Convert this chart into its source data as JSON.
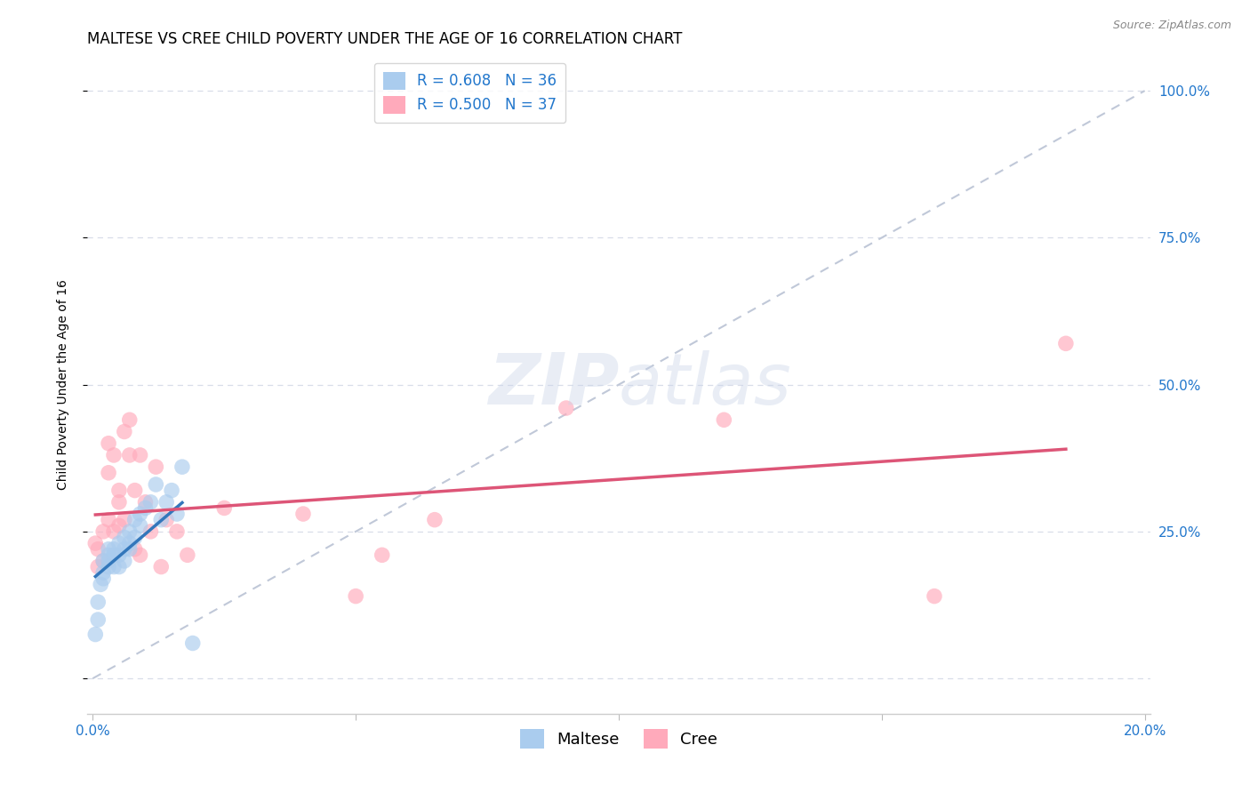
{
  "title": "MALTESE VS CREE CHILD POVERTY UNDER THE AGE OF 16 CORRELATION CHART",
  "source": "Source: ZipAtlas.com",
  "ylabel": "Child Poverty Under the Age of 16",
  "xlim": [
    -0.001,
    0.201
  ],
  "ylim": [
    -0.06,
    1.06
  ],
  "ytick_positions": [
    0.0,
    0.25,
    0.5,
    0.75,
    1.0
  ],
  "right_ytick_positions": [
    1.0,
    0.75,
    0.5,
    0.25
  ],
  "maltese_color": "#aaccee",
  "cree_color": "#ffaabb",
  "maltese_R": 0.608,
  "maltese_N": 36,
  "cree_R": 0.5,
  "cree_N": 37,
  "maltese_line_color": "#3377bb",
  "cree_line_color": "#dd5577",
  "ref_line_color": "#c0c8d8",
  "background_color": "#ffffff",
  "grid_color": "#d8dde8",
  "title_fontsize": 12,
  "axis_label_fontsize": 10,
  "tick_fontsize": 11,
  "legend_fontsize": 12,
  "watermark_color": "#c8d4e8",
  "watermark_alpha": 0.4,
  "maltese_x": [
    0.0005,
    0.001,
    0.001,
    0.0015,
    0.002,
    0.002,
    0.002,
    0.003,
    0.003,
    0.003,
    0.003,
    0.004,
    0.004,
    0.004,
    0.005,
    0.005,
    0.005,
    0.006,
    0.006,
    0.006,
    0.007,
    0.007,
    0.007,
    0.008,
    0.008,
    0.009,
    0.009,
    0.01,
    0.011,
    0.012,
    0.013,
    0.014,
    0.015,
    0.016,
    0.017,
    0.019
  ],
  "maltese_y": [
    0.075,
    0.1,
    0.13,
    0.16,
    0.18,
    0.17,
    0.2,
    0.19,
    0.21,
    0.22,
    0.2,
    0.19,
    0.22,
    0.21,
    0.23,
    0.21,
    0.19,
    0.22,
    0.2,
    0.24,
    0.22,
    0.25,
    0.23,
    0.27,
    0.24,
    0.26,
    0.28,
    0.29,
    0.3,
    0.33,
    0.27,
    0.3,
    0.32,
    0.28,
    0.36,
    0.06
  ],
  "cree_x": [
    0.0005,
    0.001,
    0.001,
    0.002,
    0.002,
    0.003,
    0.003,
    0.003,
    0.004,
    0.004,
    0.005,
    0.005,
    0.005,
    0.006,
    0.006,
    0.007,
    0.007,
    0.008,
    0.008,
    0.009,
    0.009,
    0.01,
    0.011,
    0.012,
    0.013,
    0.014,
    0.016,
    0.018,
    0.025,
    0.04,
    0.05,
    0.055,
    0.065,
    0.09,
    0.12,
    0.16,
    0.185
  ],
  "cree_y": [
    0.23,
    0.22,
    0.19,
    0.25,
    0.2,
    0.27,
    0.35,
    0.4,
    0.38,
    0.25,
    0.32,
    0.3,
    0.26,
    0.27,
    0.42,
    0.44,
    0.38,
    0.22,
    0.32,
    0.21,
    0.38,
    0.3,
    0.25,
    0.36,
    0.19,
    0.27,
    0.25,
    0.21,
    0.29,
    0.28,
    0.14,
    0.21,
    0.27,
    0.46,
    0.44,
    0.14,
    0.57
  ],
  "maltese_line_x": [
    0.0005,
    0.017
  ],
  "cree_line_x": [
    0.0005,
    0.185
  ]
}
